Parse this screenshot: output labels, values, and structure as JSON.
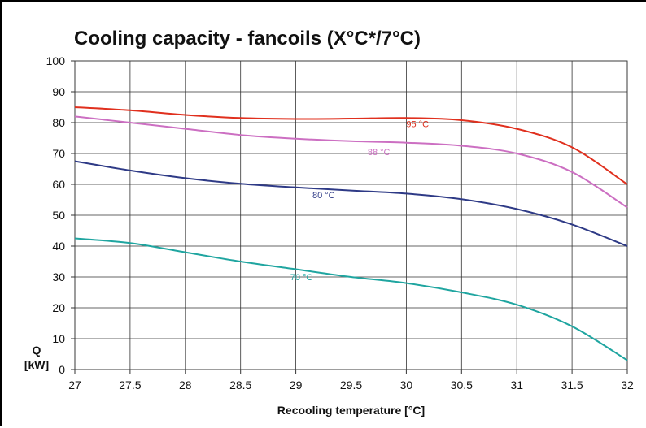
{
  "chart_data": {
    "type": "line",
    "title": "Cooling capacity - fancoils (X°C*/7°C)",
    "xlabel": "Recooling temperature [°C]",
    "ylabel_line1": "Q",
    "ylabel_line2": "[kW]",
    "xlim": [
      27,
      32
    ],
    "ylim": [
      0,
      100
    ],
    "grid": true,
    "x_ticks": [
      "27",
      "27.5",
      "28",
      "28.5",
      "29",
      "29.5",
      "30",
      "30.5",
      "31",
      "31.5",
      "32"
    ],
    "y_ticks": [
      "0",
      "10",
      "20",
      "30",
      "40",
      "50",
      "60",
      "70",
      "80",
      "90",
      "100"
    ],
    "series": [
      {
        "name": "95 °C",
        "color": "#e0301e",
        "label_at": [
          30.0,
          78.5
        ],
        "points": [
          [
            27,
            85
          ],
          [
            27.5,
            84
          ],
          [
            28,
            82.5
          ],
          [
            28.5,
            81.5
          ],
          [
            29,
            81.2
          ],
          [
            29.5,
            81.3
          ],
          [
            30,
            81.5
          ],
          [
            30.5,
            80.8
          ],
          [
            31,
            78
          ],
          [
            31.5,
            72
          ],
          [
            32,
            60
          ]
        ]
      },
      {
        "name": "88 °C",
        "color": "#cc6fc2",
        "label_at": [
          29.65,
          69.5
        ],
        "points": [
          [
            27,
            82
          ],
          [
            27.5,
            80
          ],
          [
            28,
            78
          ],
          [
            28.5,
            76
          ],
          [
            29,
            74.8
          ],
          [
            29.5,
            74
          ],
          [
            30,
            73.5
          ],
          [
            30.5,
            72.5
          ],
          [
            31,
            70
          ],
          [
            31.5,
            64
          ],
          [
            32,
            52.5
          ]
        ]
      },
      {
        "name": "80 °C",
        "color": "#2e3a86",
        "label_at": [
          29.15,
          55.5
        ],
        "points": [
          [
            27,
            67.5
          ],
          [
            27.5,
            64.5
          ],
          [
            28,
            62
          ],
          [
            28.5,
            60.2
          ],
          [
            29,
            59
          ],
          [
            29.5,
            58
          ],
          [
            30,
            57
          ],
          [
            30.5,
            55.2
          ],
          [
            31,
            52
          ],
          [
            31.5,
            47
          ],
          [
            32,
            40
          ]
        ]
      },
      {
        "name": "70 °C",
        "color": "#1fa5a0",
        "label_at": [
          28.95,
          29
        ],
        "points": [
          [
            27,
            42.5
          ],
          [
            27.5,
            41
          ],
          [
            28,
            38
          ],
          [
            28.5,
            35
          ],
          [
            29,
            32.5
          ],
          [
            29.5,
            30
          ],
          [
            30,
            28
          ],
          [
            30.5,
            25
          ],
          [
            31,
            21
          ],
          [
            31.5,
            14
          ],
          [
            32,
            3
          ]
        ]
      }
    ]
  }
}
